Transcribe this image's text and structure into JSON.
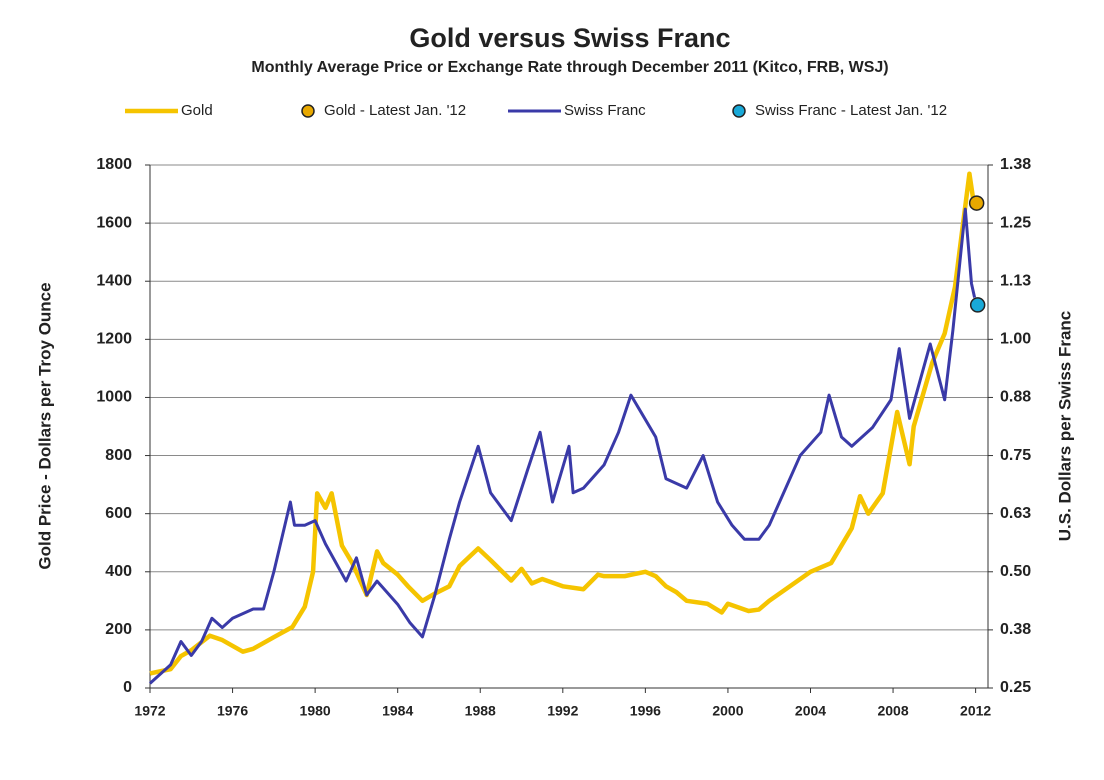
{
  "chart_data": {
    "type": "line",
    "title": "Gold versus Swiss Franc",
    "subtitle": "Monthly Average Price or Exchange Rate through December 2011 (Kitco, FRB, WSJ)",
    "y_label": "Gold Price - Dollars per Troy Ounce",
    "y2_label": "U.S. Dollars per Swiss Franc",
    "legend": "top",
    "grid": true,
    "xlim": [
      1972,
      2012.6
    ],
    "xticks": [
      1972,
      1976,
      1980,
      1984,
      1988,
      1992,
      1996,
      2000,
      2004,
      2008,
      2012
    ],
    "ylim": [
      0,
      1800
    ],
    "yticks": [
      0,
      200,
      400,
      600,
      800,
      1000,
      1200,
      1400,
      1600,
      1800
    ],
    "y2lim": [
      0.25,
      1.375
    ],
    "y2ticks": [
      0.25,
      {
        "value": 0.375,
        "label": "0.38"
      },
      {
        "value": 0.5,
        "label": "0.50"
      },
      {
        "value": 0.625,
        "label": "0.63"
      },
      0.75,
      {
        "value": 0.875,
        "label": "0.88"
      },
      {
        "value": 1.0,
        "label": "1.00"
      },
      {
        "value": 1.125,
        "label": "1.13"
      },
      1.25,
      {
        "value": 1.375,
        "label": "1.38"
      }
    ],
    "series": [
      {
        "name": "Gold",
        "color": "#f5c400",
        "kind": "line",
        "x": [
          1972,
          1973,
          1973.5,
          1974,
          1974.9,
          1975.5,
          1976.5,
          1977,
          1978,
          1978.9,
          1979.5,
          1979.9,
          1980.1,
          1980.5,
          1980.8,
          1981.3,
          1981.8,
          1982.5,
          1983,
          1983.3,
          1984,
          1984.5,
          1985.2,
          1985.8,
          1986.5,
          1987,
          1987.9,
          1988.5,
          1989.5,
          1990,
          1990.5,
          1991,
          1992,
          1993,
          1993.7,
          1994,
          1995,
          1996,
          1996.5,
          1997,
          1997.5,
          1998,
          1999,
          1999.7,
          2000,
          2001,
          2001.5,
          2002,
          2003,
          2004,
          2005,
          2006,
          2006.4,
          2006.8,
          2007.5,
          2008.2,
          2008.8,
          2009,
          2009.9,
          2010.5,
          2011,
          2011.7,
          2011.95
        ],
        "values": [
          50,
          65,
          110,
          130,
          180,
          165,
          125,
          135,
          175,
          210,
          280,
          400,
          670,
          620,
          670,
          490,
          430,
          320,
          470,
          430,
          390,
          350,
          300,
          325,
          350,
          420,
          480,
          440,
          370,
          410,
          360,
          375,
          350,
          340,
          390,
          385,
          385,
          400,
          385,
          350,
          330,
          300,
          290,
          260,
          290,
          265,
          270,
          300,
          350,
          400,
          430,
          550,
          660,
          600,
          670,
          950,
          770,
          900,
          1120,
          1220,
          1380,
          1770,
          1650
        ]
      },
      {
        "name": "Gold - Latest Jan. '12",
        "color": "#e8a800",
        "kind": "marker",
        "x": [
          2012.05
        ],
        "values": [
          1669
        ]
      },
      {
        "name": "Swiss Franc",
        "color": "#3a3aa8",
        "kind": "line",
        "axis": "y2",
        "x": [
          1972,
          1973,
          1973.5,
          1974,
          1974.5,
          1975,
          1975.5,
          1976,
          1977,
          1977.5,
          1978,
          1978.8,
          1979,
          1979.5,
          1980,
          1980.5,
          1981,
          1981.5,
          1982,
          1982.5,
          1983,
          1984,
          1984.6,
          1985.2,
          1985.8,
          1986.5,
          1987,
          1987.9,
          1988.5,
          1989.5,
          1990.3,
          1990.9,
          1991.5,
          1992.3,
          1992.5,
          1993,
          1994,
          1994.7,
          1995.3,
          1995.7,
          1996.5,
          1997,
          1998,
          1998.8,
          1999.5,
          2000.2,
          2000.8,
          2001.5,
          2002,
          2002.8,
          2003.5,
          2004.5,
          2004.9,
          2005.5,
          2006,
          2007,
          2007.9,
          2008.3,
          2008.8,
          2009.8,
          2010.5,
          2010.9,
          2011.5,
          2011.8,
          2011.95
        ],
        "values": [
          0.26,
          0.3,
          0.35,
          0.32,
          0.35,
          0.4,
          0.38,
          0.4,
          0.42,
          0.42,
          0.5,
          0.65,
          0.6,
          0.6,
          0.61,
          0.56,
          0.52,
          0.48,
          0.53,
          0.45,
          0.48,
          0.43,
          0.39,
          0.36,
          0.45,
          0.57,
          0.65,
          0.77,
          0.67,
          0.61,
          0.72,
          0.8,
          0.65,
          0.77,
          0.67,
          0.68,
          0.73,
          0.8,
          0.88,
          0.85,
          0.79,
          0.7,
          0.68,
          0.75,
          0.65,
          0.6,
          0.57,
          0.57,
          0.6,
          0.68,
          0.75,
          0.8,
          0.88,
          0.79,
          0.77,
          0.81,
          0.87,
          0.98,
          0.83,
          0.99,
          0.87,
          1.02,
          1.28,
          1.12,
          1.09
        ]
      },
      {
        "name": "Swiss Franc - Latest Jan. '12",
        "color": "#19a9d8",
        "kind": "marker",
        "axis": "y2",
        "x": [
          2012.1
        ],
        "values": [
          1.074
        ]
      }
    ]
  }
}
